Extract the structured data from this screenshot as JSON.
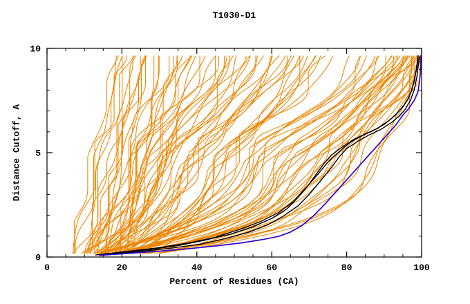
{
  "chart_data": {
    "type": "line",
    "title": "T1030-D1",
    "xlabel": "Percent of Residues (CA)",
    "ylabel": "Distance Cutoff, A",
    "xlim": [
      0,
      100
    ],
    "ylim": [
      0,
      10
    ],
    "xticks": {
      "major": [
        0,
        20,
        40,
        60,
        80,
        100
      ],
      "minor_step": 5
    },
    "yticks": {
      "major": [
        0,
        5,
        10
      ],
      "minor_step": 1
    },
    "grid": false,
    "legend": false,
    "colors": {
      "orange": "#EE8500",
      "black": "#000000",
      "blue": "#3300CC",
      "axis": "#000000",
      "text": "#000000",
      "background": "#FFFFFF"
    },
    "series": [
      {
        "name": "black-curve-1",
        "color": "#000000",
        "width": 1.4,
        "points": [
          [
            13,
            0.1
          ],
          [
            20,
            0.22
          ],
          [
            28,
            0.38
          ],
          [
            35,
            0.55
          ],
          [
            42,
            0.8
          ],
          [
            49,
            1.1
          ],
          [
            55,
            1.45
          ],
          [
            60,
            1.85
          ],
          [
            64,
            2.3
          ],
          [
            67,
            2.85
          ],
          [
            70,
            3.5
          ],
          [
            72,
            4.0
          ],
          [
            74,
            4.5
          ],
          [
            76,
            4.9
          ],
          [
            79,
            5.3
          ],
          [
            82,
            5.65
          ],
          [
            85,
            5.9
          ],
          [
            88,
            6.15
          ],
          [
            91,
            6.5
          ],
          [
            93,
            6.8
          ],
          [
            95,
            7.2
          ],
          [
            96.5,
            7.6
          ],
          [
            97.5,
            8.1
          ],
          [
            98.3,
            8.7
          ],
          [
            98.8,
            9.3
          ],
          [
            99,
            9.6
          ]
        ]
      },
      {
        "name": "black-curve-2",
        "color": "#000000",
        "width": 1.4,
        "points": [
          [
            14,
            0.12
          ],
          [
            22,
            0.28
          ],
          [
            30,
            0.45
          ],
          [
            38,
            0.68
          ],
          [
            45,
            0.95
          ],
          [
            51,
            1.3
          ],
          [
            57,
            1.7
          ],
          [
            62,
            2.15
          ],
          [
            66,
            2.7
          ],
          [
            69,
            3.3
          ],
          [
            72,
            3.9
          ],
          [
            75,
            4.55
          ],
          [
            78,
            5.05
          ],
          [
            81,
            5.5
          ],
          [
            84,
            5.8
          ],
          [
            87,
            6.05
          ],
          [
            90,
            6.35
          ],
          [
            92,
            6.65
          ],
          [
            94,
            7.0
          ],
          [
            96,
            7.45
          ],
          [
            97.3,
            7.95
          ],
          [
            98.2,
            8.55
          ],
          [
            98.8,
            9.2
          ],
          [
            99.1,
            9.65
          ]
        ]
      },
      {
        "name": "black-curve-3",
        "color": "#000000",
        "width": 1.4,
        "points": [
          [
            15,
            0.1
          ],
          [
            24,
            0.25
          ],
          [
            33,
            0.42
          ],
          [
            41,
            0.62
          ],
          [
            48,
            0.9
          ],
          [
            54,
            1.2
          ],
          [
            59,
            1.55
          ],
          [
            63,
            1.95
          ],
          [
            67,
            2.45
          ],
          [
            70,
            3.0
          ],
          [
            73,
            3.65
          ],
          [
            76,
            4.3
          ],
          [
            78,
            4.8
          ],
          [
            80,
            5.2
          ],
          [
            83,
            5.55
          ],
          [
            86,
            5.85
          ],
          [
            89,
            6.1
          ],
          [
            92,
            6.45
          ],
          [
            94,
            6.75
          ],
          [
            95.5,
            7.05
          ],
          [
            97,
            7.5
          ],
          [
            98,
            8.0
          ],
          [
            98.7,
            8.6
          ],
          [
            99.2,
            9.3
          ],
          [
            99.4,
            9.6
          ]
        ]
      },
      {
        "name": "blue-curve",
        "color": "#3300CC",
        "width": 1.7,
        "points": [
          [
            14,
            0.08
          ],
          [
            22,
            0.18
          ],
          [
            30,
            0.28
          ],
          [
            38,
            0.4
          ],
          [
            46,
            0.55
          ],
          [
            52,
            0.68
          ],
          [
            58,
            0.85
          ],
          [
            62,
            1.0
          ],
          [
            65,
            1.2
          ],
          [
            68,
            1.5
          ],
          [
            71,
            1.95
          ],
          [
            74,
            2.5
          ],
          [
            77,
            3.1
          ],
          [
            80,
            3.7
          ],
          [
            83,
            4.3
          ],
          [
            86,
            4.9
          ],
          [
            89,
            5.5
          ],
          [
            91,
            5.9
          ],
          [
            93,
            6.3
          ],
          [
            95,
            6.8
          ],
          [
            96.5,
            7.1
          ],
          [
            98,
            7.5
          ],
          [
            99,
            7.9
          ],
          [
            99.5,
            8.5
          ],
          [
            99.7,
            9.1
          ],
          [
            99.8,
            9.65
          ]
        ]
      }
    ],
    "orange_curves": {
      "anchor_y": [
        0.2,
        5.0,
        9.65
      ],
      "format": [
        "x_at_bottom",
        "x_at_mid",
        "x_at_top",
        "variation_seed"
      ],
      "curves": [
        [
          6,
          11,
          18,
          1
        ],
        [
          7,
          12,
          19,
          2
        ],
        [
          8,
          13,
          20,
          3
        ],
        [
          9,
          15,
          22,
          4
        ],
        [
          10,
          14,
          19,
          5
        ],
        [
          10,
          17,
          24,
          6
        ],
        [
          11,
          16,
          21,
          7
        ],
        [
          11,
          19,
          27,
          8
        ],
        [
          12,
          18,
          24,
          9
        ],
        [
          12,
          21,
          30,
          10
        ],
        [
          13,
          17,
          22,
          11
        ],
        [
          13,
          22,
          31,
          12
        ],
        [
          14,
          19,
          25,
          13
        ],
        [
          14,
          23,
          33,
          14
        ],
        [
          15,
          20,
          26,
          15
        ],
        [
          15,
          24,
          35,
          16
        ],
        [
          16,
          21,
          27,
          17
        ],
        [
          16,
          26,
          38,
          18
        ],
        [
          17,
          23,
          30,
          19
        ],
        [
          17,
          27,
          40,
          20
        ],
        [
          18,
          24,
          31,
          21
        ],
        [
          18,
          28,
          42,
          22
        ],
        [
          19,
          25,
          33,
          23
        ],
        [
          19,
          30,
          45,
          24
        ],
        [
          20,
          26,
          34,
          25
        ],
        [
          20,
          32,
          47,
          26
        ],
        [
          21,
          28,
          36,
          27
        ],
        [
          22,
          33,
          48,
          28
        ],
        [
          9,
          22,
          38,
          29
        ],
        [
          10,
          25,
          42,
          30
        ],
        [
          11,
          28,
          46,
          31
        ],
        [
          12,
          30,
          50,
          32
        ],
        [
          13,
          32,
          52,
          33
        ],
        [
          14,
          34,
          55,
          34
        ],
        [
          15,
          36,
          57,
          35
        ],
        [
          16,
          38,
          60,
          36
        ],
        [
          12,
          26,
          44,
          37
        ],
        [
          13,
          29,
          48,
          38
        ],
        [
          14,
          31,
          51,
          39
        ],
        [
          15,
          33,
          54,
          40
        ],
        [
          16,
          35,
          56,
          41
        ],
        [
          17,
          37,
          59,
          42
        ],
        [
          18,
          39,
          62,
          43
        ],
        [
          19,
          41,
          64,
          44
        ],
        [
          20,
          43,
          66,
          45
        ],
        [
          21,
          45,
          68,
          46
        ],
        [
          22,
          47,
          70,
          47
        ],
        [
          23,
          49,
          72,
          48
        ],
        [
          18,
          34,
          57,
          49
        ],
        [
          19,
          36,
          60,
          50
        ],
        [
          20,
          38,
          63,
          51
        ],
        [
          21,
          40,
          65,
          52
        ],
        [
          22,
          42,
          67,
          53
        ],
        [
          23,
          44,
          69,
          54
        ],
        [
          24,
          46,
          71,
          55
        ],
        [
          25,
          48,
          73,
          56
        ],
        [
          26,
          50,
          75,
          57
        ],
        [
          27,
          52,
          77,
          58
        ],
        [
          12,
          55,
          86,
          59
        ],
        [
          13,
          57,
          88,
          60
        ],
        [
          14,
          59,
          90,
          61
        ],
        [
          15,
          61,
          92,
          62
        ],
        [
          16,
          63,
          93,
          63
        ],
        [
          17,
          65,
          94,
          64
        ],
        [
          18,
          67,
          95,
          65
        ],
        [
          19,
          69,
          96,
          66
        ],
        [
          20,
          71,
          97,
          67
        ],
        [
          21,
          73,
          98,
          68
        ],
        [
          22,
          75,
          98,
          69
        ],
        [
          23,
          77,
          99,
          70
        ],
        [
          24,
          79,
          99,
          71
        ],
        [
          25,
          81,
          99,
          72
        ],
        [
          14,
          52,
          82,
          73
        ],
        [
          15,
          54,
          84,
          74
        ],
        [
          16,
          56,
          86,
          75
        ],
        [
          17,
          58,
          88,
          76
        ],
        [
          18,
          60,
          90,
          77
        ],
        [
          19,
          62,
          91,
          78
        ],
        [
          20,
          64,
          92,
          79
        ],
        [
          21,
          66,
          93,
          80
        ],
        [
          22,
          68,
          94,
          81
        ],
        [
          23,
          70,
          95,
          82
        ],
        [
          24,
          72,
          96,
          83
        ],
        [
          25,
          74,
          97,
          84
        ],
        [
          26,
          76,
          97,
          85
        ],
        [
          27,
          78,
          98,
          86
        ],
        [
          28,
          80,
          98,
          87
        ],
        [
          29,
          82,
          99,
          88
        ],
        [
          30,
          84,
          99,
          89
        ],
        [
          31,
          86,
          99,
          90
        ],
        [
          20,
          88,
          99,
          91
        ],
        [
          25,
          90,
          99,
          92
        ]
      ]
    }
  }
}
